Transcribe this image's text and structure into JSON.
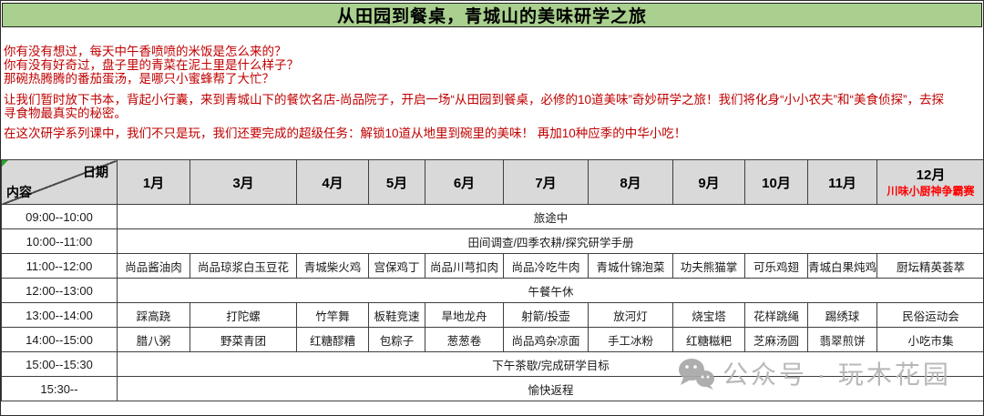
{
  "title": "从田园到餐桌，青城山的美味研学之旅",
  "intro": {
    "lines": [
      "你有没有想过，每天中午香喷喷的米饭是怎么来的？",
      "你有没有好奇过，盘子里的青菜在泥土里是什么样子？",
      "那碗热腾腾的番茄蛋汤，是哪只小蜜蜂帮了大忙？",
      "让我们暂时放下书本，背起小行囊，来到青城山下的餐饮名店-尚品院子，开启一场“从田园到餐桌，必修的10道美味”奇妙研学之旅！我们将化身“小小农夫”和“美食侦探”，去探",
      "寻食物最真实的秘密。",
      "在这次研学系列课中，我们不只是玩，我们还要完成的超级任务：解锁10道从地里到碗里的美味！ 再加10种应季的中华小吃！"
    ]
  },
  "table": {
    "corner": {
      "top_right": "日期",
      "bottom_left": "内容"
    },
    "months": [
      "1月",
      "3月",
      "4月",
      "5月",
      "6月",
      "7月",
      "8月",
      "9月",
      "10月",
      "11月",
      "12月"
    ],
    "month12_note": "川味小厨神争霸赛",
    "rows": [
      {
        "time": "09:00--10:00",
        "type": "merged",
        "text": "旅途中"
      },
      {
        "time": "10:00--11:00",
        "type": "merged",
        "text": "田间调查/四季农耕/探究研学手册"
      },
      {
        "time": "11:00--12:00",
        "type": "cells",
        "cells": [
          "尚品酱油肉",
          "尚品琼浆白玉豆花",
          "青城柴火鸡",
          "宫保鸡丁",
          "尚品川芎扣肉",
          "尚品冷吃牛肉",
          "青城什锦泡菜",
          "功夫熊猫掌",
          "可乐鸡翅",
          "青城白果炖鸡",
          "厨坛精英荟萃"
        ]
      },
      {
        "time": "12:00--13:00",
        "type": "merged",
        "text": "午餐午休"
      },
      {
        "time": "13:00--14:00",
        "type": "cells",
        "cells": [
          "踩高跷",
          "打陀螺",
          "竹竿舞",
          "板鞋竞速",
          "旱地龙舟",
          "射箭/投壶",
          "放河灯",
          "烧宝塔",
          "花样跳绳",
          "踢绣球",
          "民俗运动会"
        ]
      },
      {
        "time": "14:00--15:00",
        "type": "cells",
        "cells": [
          "腊八粥",
          "野菜青团",
          "红糖醪糟",
          "包粽子",
          "葱葱卷",
          "尚品鸡杂凉面",
          "手工冰粉",
          "红糖糍粑",
          "芝麻汤圆",
          "翡翠煎饼",
          "小吃市集"
        ]
      },
      {
        "time": "15:00--15:30",
        "type": "merged",
        "text": "下午茶歇/完成研学目标"
      },
      {
        "time": "15:30--",
        "type": "merged",
        "text": "愉快返程"
      }
    ]
  },
  "watermark": {
    "icon": "wechat-icon",
    "text": "公众号 · 玩木花园"
  },
  "colors": {
    "banner_bg": "#a9d08e",
    "intro_text": "#c00000",
    "header_bg": "#d9d9d9",
    "note_red": "#ff0000",
    "watermark_gray": "#b3b3b3"
  }
}
